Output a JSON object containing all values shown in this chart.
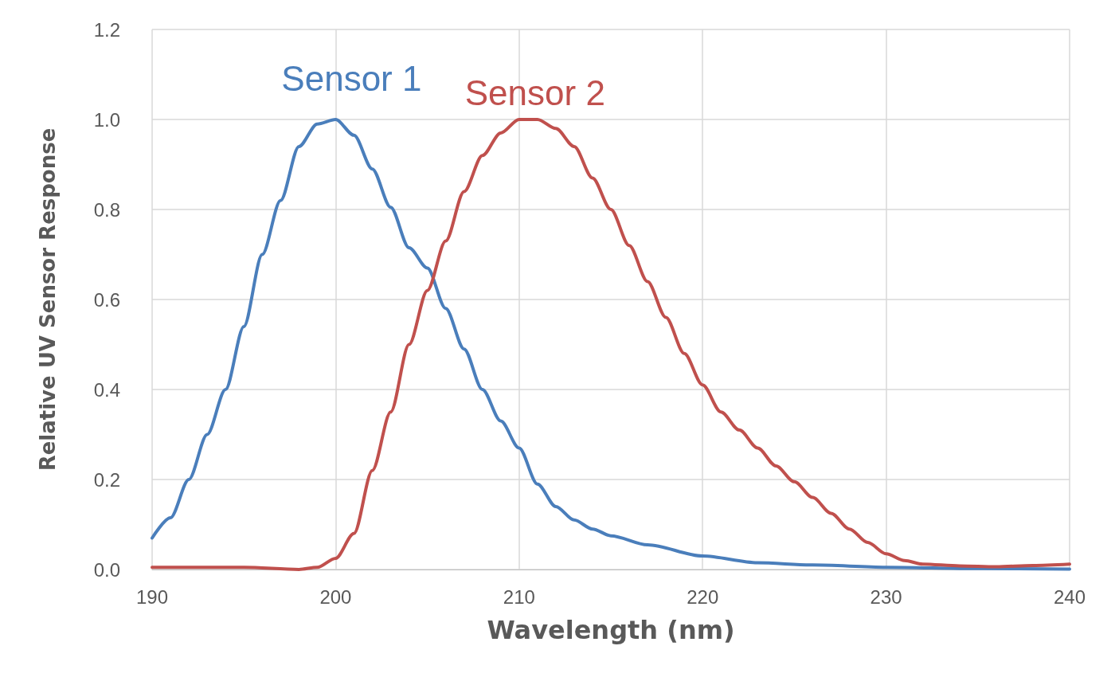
{
  "chart_data": {
    "type": "line",
    "xlabel": "Wavelength (nm)",
    "ylabel": "Relative UV Sensor Response",
    "xlim": [
      190,
      240
    ],
    "xticks": [
      190,
      200,
      210,
      220,
      230,
      240
    ],
    "ylim": [
      0,
      1.2
    ],
    "yticks": [
      {
        "value": 0,
        "label": "0.0"
      },
      {
        "value": 0.2,
        "label": "0.2"
      },
      {
        "value": 0.4,
        "label": "0.4"
      },
      {
        "value": 0.6,
        "label": "0.6"
      },
      {
        "value": 0.8,
        "label": "0.8"
      },
      {
        "value": 1,
        "label": "1.0"
      },
      {
        "value": 1.2,
        "label": "1.2"
      }
    ],
    "grid": true,
    "legend": false,
    "marker": "none",
    "line_style": "solid",
    "series": [
      {
        "name": "Sensor 1",
        "color": "#4a7ebb",
        "x": [
          190,
          191,
          192,
          193,
          194,
          195,
          196,
          197,
          198,
          199,
          200,
          201,
          202,
          203,
          204,
          205,
          206,
          207,
          208,
          209,
          210,
          211,
          212,
          213,
          214,
          215,
          217,
          220,
          223,
          226,
          230,
          235,
          240
        ],
        "values": [
          0.07,
          0.115,
          0.2,
          0.3,
          0.4,
          0.54,
          0.7,
          0.82,
          0.94,
          0.99,
          1.0,
          0.965,
          0.89,
          0.805,
          0.715,
          0.67,
          0.58,
          0.49,
          0.4,
          0.33,
          0.27,
          0.19,
          0.14,
          0.11,
          0.09,
          0.075,
          0.055,
          0.03,
          0.015,
          0.01,
          0.005,
          0.002,
          0.001
        ]
      },
      {
        "name": "Sensor 2",
        "color": "#c0504d",
        "x": [
          190,
          195,
          198,
          199,
          200,
          201,
          202,
          203,
          204,
          205,
          206,
          207,
          208,
          209,
          210,
          211,
          212,
          213,
          214,
          215,
          216,
          217,
          218,
          219,
          220,
          221,
          222,
          223,
          224,
          225,
          226,
          227,
          228,
          229,
          230,
          231,
          232,
          234,
          236,
          238,
          240
        ],
        "values": [
          0.005,
          0.005,
          0.0,
          0.005,
          0.025,
          0.08,
          0.22,
          0.35,
          0.5,
          0.62,
          0.73,
          0.84,
          0.92,
          0.97,
          1.0,
          1.0,
          0.98,
          0.94,
          0.87,
          0.8,
          0.72,
          0.64,
          0.56,
          0.48,
          0.41,
          0.35,
          0.31,
          0.27,
          0.23,
          0.195,
          0.16,
          0.125,
          0.09,
          0.06,
          0.035,
          0.02,
          0.012,
          0.008,
          0.006,
          0.009,
          0.012
        ]
      }
    ]
  }
}
